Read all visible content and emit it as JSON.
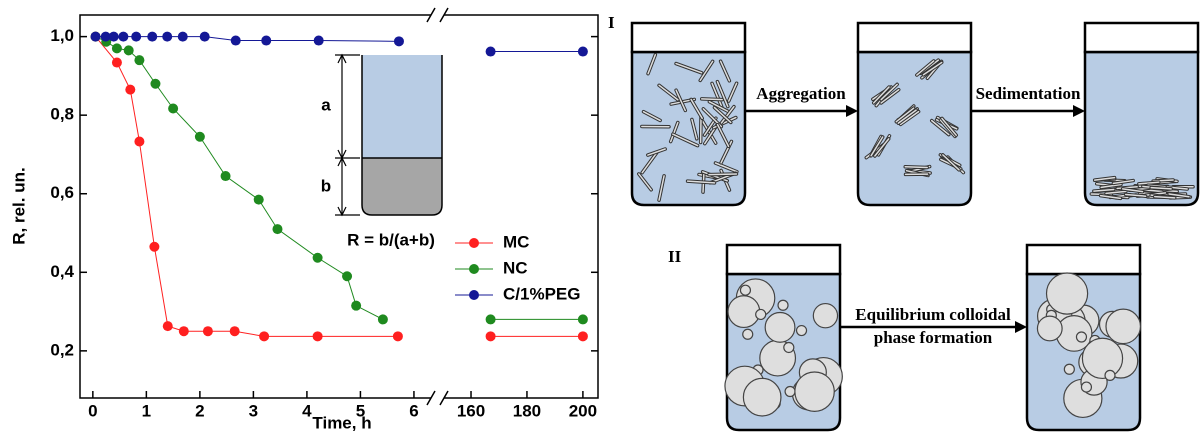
{
  "chart_data": {
    "type": "line",
    "xlabel": "Time, h",
    "ylabel": "R, rel. un.",
    "xlim": [
      -0.24,
      6.3
    ],
    "xticks": [
      0,
      1,
      2,
      3,
      4,
      5,
      6
    ],
    "x2lim": [
      150.7,
      205.4
    ],
    "x2ticks": [
      160,
      180,
      200
    ],
    "ylim": [
      0.08,
      1.055
    ],
    "yticks": [
      {
        "value": 0.2,
        "label": "0,2"
      },
      {
        "value": 0.4,
        "label": "0,4"
      },
      {
        "value": 0.6,
        "label": "0,6"
      },
      {
        "value": 0.8,
        "label": "0,8"
      },
      {
        "value": 1.0,
        "label": "1,0"
      }
    ],
    "series": [
      {
        "name": "MC",
        "color": "#ff2020",
        "x": [
          0.05,
          0.45,
          0.7,
          0.87,
          1.15,
          1.4,
          1.7,
          2.15,
          2.65,
          3.2,
          4.2,
          5.7,
          167,
          200
        ],
        "values": [
          1.0,
          0.934,
          0.865,
          0.733,
          0.465,
          0.263,
          0.25,
          0.25,
          0.25,
          0.237,
          0.237,
          0.237,
          0.237,
          0.237
        ]
      },
      {
        "name": "NC",
        "color": "#1f8a1f",
        "x": [
          0.05,
          0.25,
          0.45,
          0.67,
          0.87,
          1.17,
          1.5,
          2.0,
          2.48,
          3.1,
          3.45,
          4.2,
          4.75,
          4.92,
          5.42,
          167,
          200
        ],
        "values": [
          1.0,
          0.987,
          0.97,
          0.965,
          0.94,
          0.88,
          0.817,
          0.745,
          0.645,
          0.585,
          0.51,
          0.437,
          0.39,
          0.315,
          0.28,
          0.28,
          0.28
        ]
      },
      {
        "name": "C/1%PEG",
        "color": "#141896",
        "x": [
          0.05,
          0.24,
          0.39,
          0.57,
          0.81,
          1.11,
          1.39,
          1.68,
          2.09,
          2.67,
          3.24,
          4.22,
          5.72,
          167,
          200
        ],
        "values": [
          1.0,
          1.0,
          1.0,
          1.0,
          1.0,
          1.0,
          1.0,
          1.0,
          1.0,
          0.99,
          0.99,
          0.99,
          0.988,
          0.962,
          0.962
        ]
      }
    ],
    "inset": {
      "a": "a",
      "b": "b",
      "formula": "R = b/(a+b)"
    }
  },
  "diagram": {
    "panels": [
      {
        "label": "I",
        "steps": [
          "Aggregation",
          "Sedimentation"
        ]
      },
      {
        "label": "II",
        "steps": [
          "Equilibrium colloidal",
          "phase formation"
        ]
      }
    ]
  }
}
